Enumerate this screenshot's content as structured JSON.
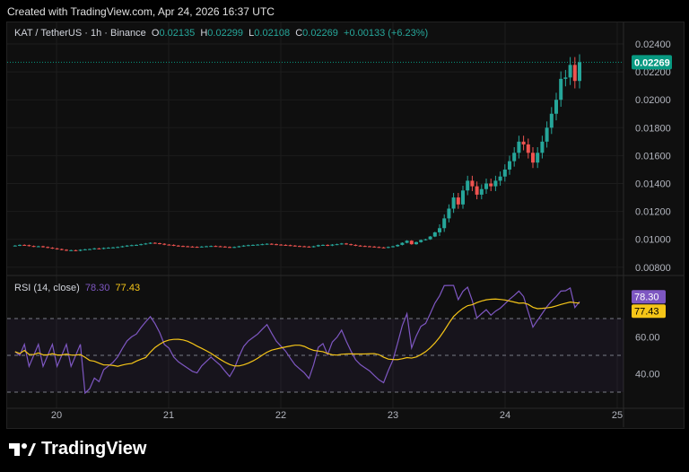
{
  "header": {
    "created": "Created with TradingView.com, Apr 24, 2026 16:37 UTC"
  },
  "legend": {
    "symbol": "KAT / TetherUS · 1h · Binance",
    "o_label": "O",
    "o": "0.02135",
    "h_label": "H",
    "h": "0.02299",
    "l_label": "L",
    "l": "0.02108",
    "c_label": "C",
    "c": "0.02269",
    "change": "+0.00133 (+6.23%)"
  },
  "rsi_legend": {
    "label": "RSI (14, close)",
    "rsi": "78.30",
    "ma": "77.43"
  },
  "logo": {
    "text": "TradingView"
  },
  "colors": {
    "up": "#26a69a",
    "down": "#ef5350",
    "rsi": "#7e57c2",
    "rsi_ma": "#f5c518",
    "last_price": "#089981"
  },
  "chart_data": [
    {
      "type": "candlestick",
      "title": "KAT / TetherUS · 1h · Binance",
      "ylim": [
        0.0075,
        0.0245
      ],
      "y_ticks": [
        "0.02400",
        "0.02200",
        "0.02000",
        "0.01800",
        "0.01600",
        "0.01400",
        "0.01200",
        "0.01000",
        "0.00800"
      ],
      "x_ticks": [
        "20",
        "21",
        "22",
        "23",
        "24",
        "25"
      ],
      "last_price": "0.02269",
      "closes": [
        0.00955,
        0.0096,
        0.00958,
        0.00952,
        0.00948,
        0.0095,
        0.00945,
        0.0094,
        0.00935,
        0.0093,
        0.00925,
        0.0092,
        0.00922,
        0.00918,
        0.00925,
        0.00928,
        0.0093,
        0.00935,
        0.00932,
        0.00938,
        0.0094,
        0.00942,
        0.00945,
        0.0095,
        0.00955,
        0.00958,
        0.0096,
        0.00965,
        0.0097,
        0.00975,
        0.00972,
        0.00968,
        0.00962,
        0.0096,
        0.00955,
        0.00952,
        0.0095,
        0.00948,
        0.00946,
        0.00945,
        0.00948,
        0.0095,
        0.00952,
        0.0095,
        0.00948,
        0.00945,
        0.00942,
        0.00945,
        0.0095,
        0.00955,
        0.00958,
        0.0096,
        0.00962,
        0.00965,
        0.00968,
        0.00965,
        0.00962,
        0.0096,
        0.00958,
        0.00955,
        0.00952,
        0.0095,
        0.00948,
        0.00945,
        0.0095,
        0.00958,
        0.0096,
        0.00955,
        0.00962,
        0.00965,
        0.0097,
        0.00965,
        0.0096,
        0.00955,
        0.00952,
        0.0095,
        0.00948,
        0.00945,
        0.00942,
        0.0094,
        0.00945,
        0.0095,
        0.0096,
        0.00975,
        0.0099,
        0.00965,
        0.0098,
        0.00995,
        0.01,
        0.0102,
        0.0105,
        0.0108,
        0.0115,
        0.0122,
        0.013,
        0.0125,
        0.0135,
        0.0142,
        0.0138,
        0.0132,
        0.0136,
        0.014,
        0.0138,
        0.0142,
        0.0145,
        0.015,
        0.0156,
        0.0162,
        0.017,
        0.0168,
        0.0162,
        0.0155,
        0.0162,
        0.017,
        0.018,
        0.019,
        0.02,
        0.0215,
        0.0216,
        0.0225,
        0.02135,
        0.02269
      ]
    },
    {
      "type": "line",
      "title": "RSI (14, close)",
      "ylim": [
        20,
        85
      ],
      "y_ticks": [
        "60.00",
        "40.00"
      ],
      "bands": [
        30,
        50,
        70
      ],
      "last_rsi": "78.30",
      "last_ma": "77.43"
    }
  ]
}
